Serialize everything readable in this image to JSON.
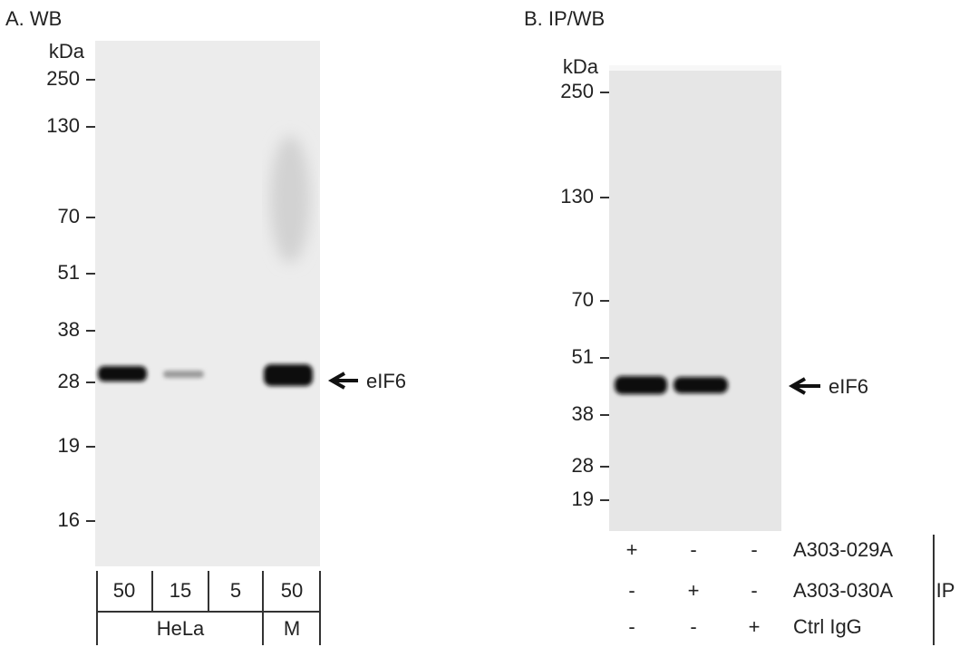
{
  "panels": [
    {
      "title": "A. WB",
      "unit": "kDa",
      "markers": [
        "250",
        "130",
        "70",
        "51",
        "38",
        "28",
        "19",
        "16"
      ],
      "band_label": "eIF6",
      "lanes": [
        "50",
        "15",
        "5",
        "50"
      ],
      "groups": [
        "HeLa",
        "M"
      ]
    },
    {
      "title": "B. IP/WB",
      "unit": "kDa",
      "markers": [
        "250",
        "130",
        "70",
        "51",
        "38",
        "28",
        "19"
      ],
      "band_label": "eIF6",
      "rows": [
        {
          "label": "A303-029A",
          "marks": [
            "+",
            "-",
            "-"
          ]
        },
        {
          "label": "A303-030A",
          "marks": [
            "-",
            "+",
            "-"
          ]
        },
        {
          "label": "Ctrl IgG",
          "marks": [
            "-",
            "-",
            "+"
          ]
        }
      ],
      "row_group": "IP"
    }
  ]
}
